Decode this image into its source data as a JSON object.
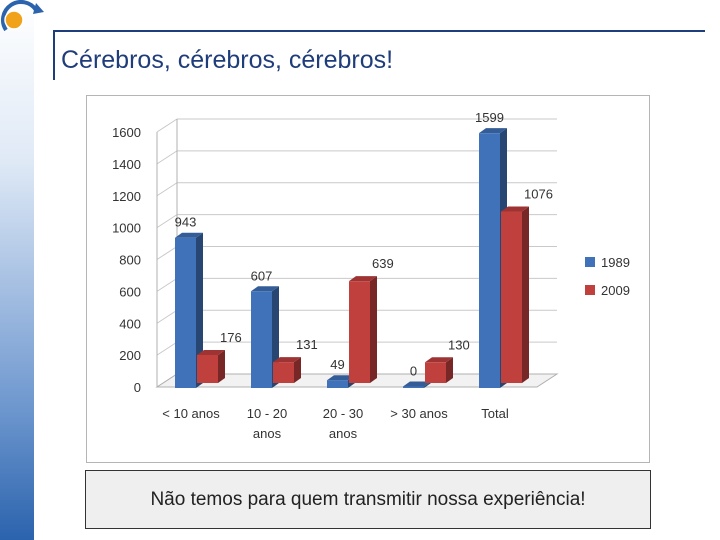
{
  "slide": {
    "title": "Cérebros, cérebros, cérebros!",
    "caption": "Não temos para quem transmitir nossa experiência!"
  },
  "colors": {
    "series_1989": "#3f72b8",
    "series_2009": "#c0403e",
    "title": "#1f3d7a"
  },
  "chart_data": {
    "type": "bar",
    "categories": [
      "< 10 anos",
      "10 - 20 anos",
      "20 - 30 anos",
      "> 30 anos",
      "Total"
    ],
    "category_lines": [
      [
        "< 10 anos"
      ],
      [
        "10 - 20",
        "anos"
      ],
      [
        "20 - 30",
        "anos"
      ],
      [
        "> 30 anos"
      ],
      [
        "Total"
      ]
    ],
    "series": [
      {
        "name": "1989",
        "values": [
          943,
          607,
          49,
          0,
          1599
        ]
      },
      {
        "name": "2009",
        "values": [
          176,
          131,
          639,
          130,
          1076
        ]
      }
    ],
    "yticks": [
      "0",
      "200",
      "400",
      "600",
      "800",
      "1000",
      "1200",
      "1400",
      "1600"
    ],
    "ylim": [
      0,
      1600
    ],
    "grid": true,
    "legend": "right",
    "title": "",
    "xlabel": "",
    "ylabel": ""
  }
}
